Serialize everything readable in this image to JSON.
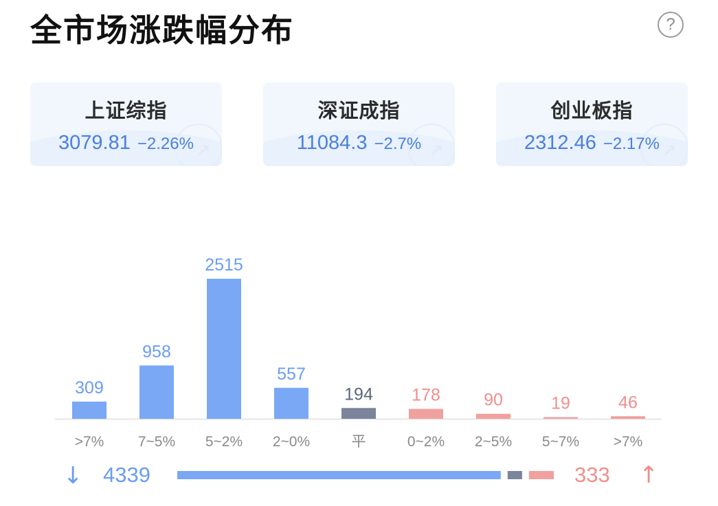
{
  "header": {
    "title": "全市场涨跌幅分布",
    "help_icon": "?"
  },
  "indices": [
    {
      "name": "上证综指",
      "price": "3079.81",
      "change": "−2.26%"
    },
    {
      "name": "深证成指",
      "price": "11084.3",
      "change": "−2.7%"
    },
    {
      "name": "创业板指",
      "price": "2312.46",
      "change": "−2.17%"
    }
  ],
  "colors": {
    "down": "#7aa8f5",
    "flat": "#7b849b",
    "up": "#f0a19e",
    "down_text": "#6a9cf3",
    "up_text": "#ef8f8b"
  },
  "chart_data": {
    "type": "bar",
    "categories": [
      ">7%",
      "7~5%",
      "5~2%",
      "2~0%",
      "平",
      "0~2%",
      "2~5%",
      "5~7%",
      ">7%"
    ],
    "values": [
      309,
      958,
      2515,
      557,
      194,
      178,
      90,
      19,
      46
    ],
    "groups": [
      "down",
      "down",
      "down",
      "down",
      "flat",
      "up",
      "up",
      "up",
      "up"
    ],
    "title": "全市场涨跌幅分布",
    "xlabel": "",
    "ylabel": "",
    "ylim": [
      0,
      2515
    ],
    "grid": false
  },
  "summary": {
    "down_total": "4339",
    "flat_total": 194,
    "up_total": "333",
    "down_arrow": "↓",
    "up_arrow": "↑"
  }
}
